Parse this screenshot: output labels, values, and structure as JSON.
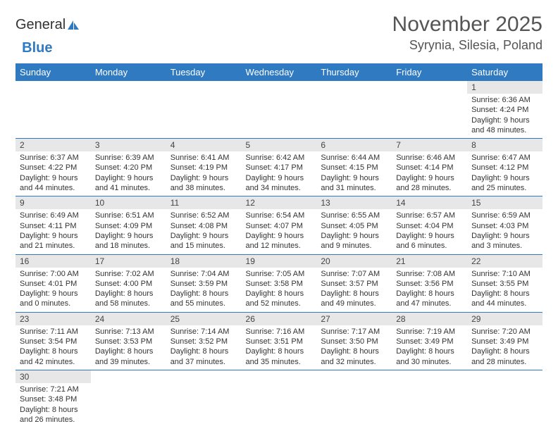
{
  "logo": {
    "text1": "General",
    "text2": "Blue"
  },
  "title": "November 2025",
  "location": "Syrynia, Silesia, Poland",
  "colors": {
    "header_bg": "#2f7ac0",
    "header_fg": "#ffffff",
    "daynum_bg": "#e7e7e7",
    "row_border": "#2f7ac0",
    "title_color": "#555555",
    "body_text": "#333333"
  },
  "day_headers": [
    "Sunday",
    "Monday",
    "Tuesday",
    "Wednesday",
    "Thursday",
    "Friday",
    "Saturday"
  ],
  "weeks": [
    [
      null,
      null,
      null,
      null,
      null,
      null,
      {
        "n": "1",
        "sr": "6:36 AM",
        "ss": "4:24 PM",
        "dl": "9 hours and 48 minutes."
      }
    ],
    [
      {
        "n": "2",
        "sr": "6:37 AM",
        "ss": "4:22 PM",
        "dl": "9 hours and 44 minutes."
      },
      {
        "n": "3",
        "sr": "6:39 AM",
        "ss": "4:20 PM",
        "dl": "9 hours and 41 minutes."
      },
      {
        "n": "4",
        "sr": "6:41 AM",
        "ss": "4:19 PM",
        "dl": "9 hours and 38 minutes."
      },
      {
        "n": "5",
        "sr": "6:42 AM",
        "ss": "4:17 PM",
        "dl": "9 hours and 34 minutes."
      },
      {
        "n": "6",
        "sr": "6:44 AM",
        "ss": "4:15 PM",
        "dl": "9 hours and 31 minutes."
      },
      {
        "n": "7",
        "sr": "6:46 AM",
        "ss": "4:14 PM",
        "dl": "9 hours and 28 minutes."
      },
      {
        "n": "8",
        "sr": "6:47 AM",
        "ss": "4:12 PM",
        "dl": "9 hours and 25 minutes."
      }
    ],
    [
      {
        "n": "9",
        "sr": "6:49 AM",
        "ss": "4:11 PM",
        "dl": "9 hours and 21 minutes."
      },
      {
        "n": "10",
        "sr": "6:51 AM",
        "ss": "4:09 PM",
        "dl": "9 hours and 18 minutes."
      },
      {
        "n": "11",
        "sr": "6:52 AM",
        "ss": "4:08 PM",
        "dl": "9 hours and 15 minutes."
      },
      {
        "n": "12",
        "sr": "6:54 AM",
        "ss": "4:07 PM",
        "dl": "9 hours and 12 minutes."
      },
      {
        "n": "13",
        "sr": "6:55 AM",
        "ss": "4:05 PM",
        "dl": "9 hours and 9 minutes."
      },
      {
        "n": "14",
        "sr": "6:57 AM",
        "ss": "4:04 PM",
        "dl": "9 hours and 6 minutes."
      },
      {
        "n": "15",
        "sr": "6:59 AM",
        "ss": "4:03 PM",
        "dl": "9 hours and 3 minutes."
      }
    ],
    [
      {
        "n": "16",
        "sr": "7:00 AM",
        "ss": "4:01 PM",
        "dl": "9 hours and 0 minutes."
      },
      {
        "n": "17",
        "sr": "7:02 AM",
        "ss": "4:00 PM",
        "dl": "8 hours and 58 minutes."
      },
      {
        "n": "18",
        "sr": "7:04 AM",
        "ss": "3:59 PM",
        "dl": "8 hours and 55 minutes."
      },
      {
        "n": "19",
        "sr": "7:05 AM",
        "ss": "3:58 PM",
        "dl": "8 hours and 52 minutes."
      },
      {
        "n": "20",
        "sr": "7:07 AM",
        "ss": "3:57 PM",
        "dl": "8 hours and 49 minutes."
      },
      {
        "n": "21",
        "sr": "7:08 AM",
        "ss": "3:56 PM",
        "dl": "8 hours and 47 minutes."
      },
      {
        "n": "22",
        "sr": "7:10 AM",
        "ss": "3:55 PM",
        "dl": "8 hours and 44 minutes."
      }
    ],
    [
      {
        "n": "23",
        "sr": "7:11 AM",
        "ss": "3:54 PM",
        "dl": "8 hours and 42 minutes."
      },
      {
        "n": "24",
        "sr": "7:13 AM",
        "ss": "3:53 PM",
        "dl": "8 hours and 39 minutes."
      },
      {
        "n": "25",
        "sr": "7:14 AM",
        "ss": "3:52 PM",
        "dl": "8 hours and 37 minutes."
      },
      {
        "n": "26",
        "sr": "7:16 AM",
        "ss": "3:51 PM",
        "dl": "8 hours and 35 minutes."
      },
      {
        "n": "27",
        "sr": "7:17 AM",
        "ss": "3:50 PM",
        "dl": "8 hours and 32 minutes."
      },
      {
        "n": "28",
        "sr": "7:19 AM",
        "ss": "3:49 PM",
        "dl": "8 hours and 30 minutes."
      },
      {
        "n": "29",
        "sr": "7:20 AM",
        "ss": "3:49 PM",
        "dl": "8 hours and 28 minutes."
      }
    ],
    [
      {
        "n": "30",
        "sr": "7:21 AM",
        "ss": "3:48 PM",
        "dl": "8 hours and 26 minutes."
      },
      null,
      null,
      null,
      null,
      null,
      null
    ]
  ],
  "labels": {
    "sunrise": "Sunrise:",
    "sunset": "Sunset:",
    "daylight": "Daylight:"
  }
}
